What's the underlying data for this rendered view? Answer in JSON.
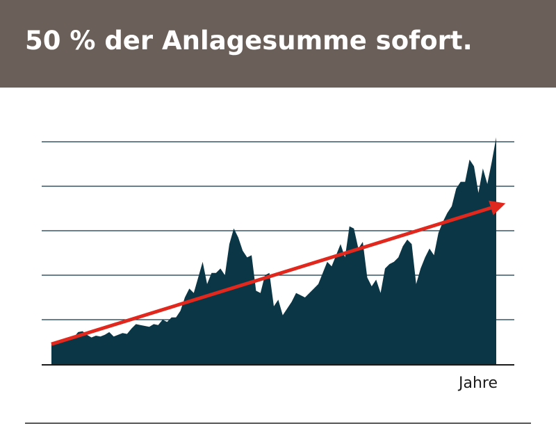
{
  "header": {
    "title": "50 % der Anlagesumme sofort."
  },
  "colors": {
    "header_bg": "#6b5f59",
    "area": "#0b3646",
    "trend": "#e0281e",
    "grid": "#0b3646"
  },
  "chart_data": {
    "type": "area",
    "title": "50 % der Anlagesumme sofort.",
    "xlabel": "Jahre",
    "ylabel": "",
    "grid": true,
    "legend": "none",
    "ylim": [
      0,
      5
    ],
    "xlim": [
      0,
      100
    ],
    "yticks": [
      1,
      2,
      3,
      4,
      5
    ],
    "series": [
      {
        "x": [
          0,
          1,
          2,
          3,
          4,
          5,
          6,
          7,
          8,
          9,
          10,
          11,
          12,
          13,
          14,
          15,
          16,
          17,
          18,
          19,
          20,
          21,
          22,
          23,
          24,
          25,
          26,
          27,
          28,
          29,
          30,
          31,
          32,
          33,
          34,
          35,
          36,
          37,
          38,
          39,
          40,
          41,
          42,
          43,
          44,
          45,
          46,
          47,
          48,
          49,
          50,
          51,
          52,
          53,
          54,
          55,
          56,
          57,
          58,
          59,
          60,
          61,
          62,
          63,
          64,
          65,
          66,
          67,
          68,
          69,
          70,
          71,
          72,
          73,
          74,
          75,
          76,
          77,
          78,
          79,
          80,
          81,
          82,
          83,
          84,
          85,
          86,
          87,
          88,
          89,
          90,
          91,
          92,
          93,
          94,
          95,
          96,
          97,
          98,
          99,
          100
        ],
        "values": [
          0.45,
          0.5,
          0.55,
          0.52,
          0.58,
          0.6,
          0.72,
          0.74,
          0.66,
          0.6,
          0.64,
          0.62,
          0.66,
          0.72,
          0.62,
          0.66,
          0.7,
          0.68,
          0.8,
          0.9,
          0.88,
          0.86,
          0.84,
          0.9,
          0.88,
          1.0,
          0.95,
          1.05,
          1.05,
          1.2,
          1.5,
          1.7,
          1.6,
          1.95,
          2.3,
          1.8,
          2.05,
          2.05,
          2.15,
          2.0,
          2.7,
          3.05,
          2.85,
          2.55,
          2.4,
          2.45,
          1.65,
          1.6,
          2.0,
          2.05,
          1.3,
          1.45,
          1.1,
          1.25,
          1.4,
          1.6,
          1.55,
          1.5,
          1.6,
          1.7,
          1.8,
          2.05,
          2.3,
          2.2,
          2.45,
          2.7,
          2.4,
          3.1,
          3.05,
          2.6,
          2.75,
          1.95,
          1.75,
          1.9,
          1.6,
          2.15,
          2.25,
          2.3,
          2.4,
          2.65,
          2.8,
          2.7,
          1.8,
          2.15,
          2.4,
          2.6,
          2.45,
          2.95,
          3.2,
          3.4,
          3.55,
          3.95,
          4.1,
          4.1,
          4.6,
          4.45,
          3.85,
          4.4,
          4.05,
          4.55,
          5.1
        ],
        "trend": {
          "x": [
            0,
            100
          ],
          "y": [
            0.45,
            3.55
          ]
        }
      }
    ]
  }
}
